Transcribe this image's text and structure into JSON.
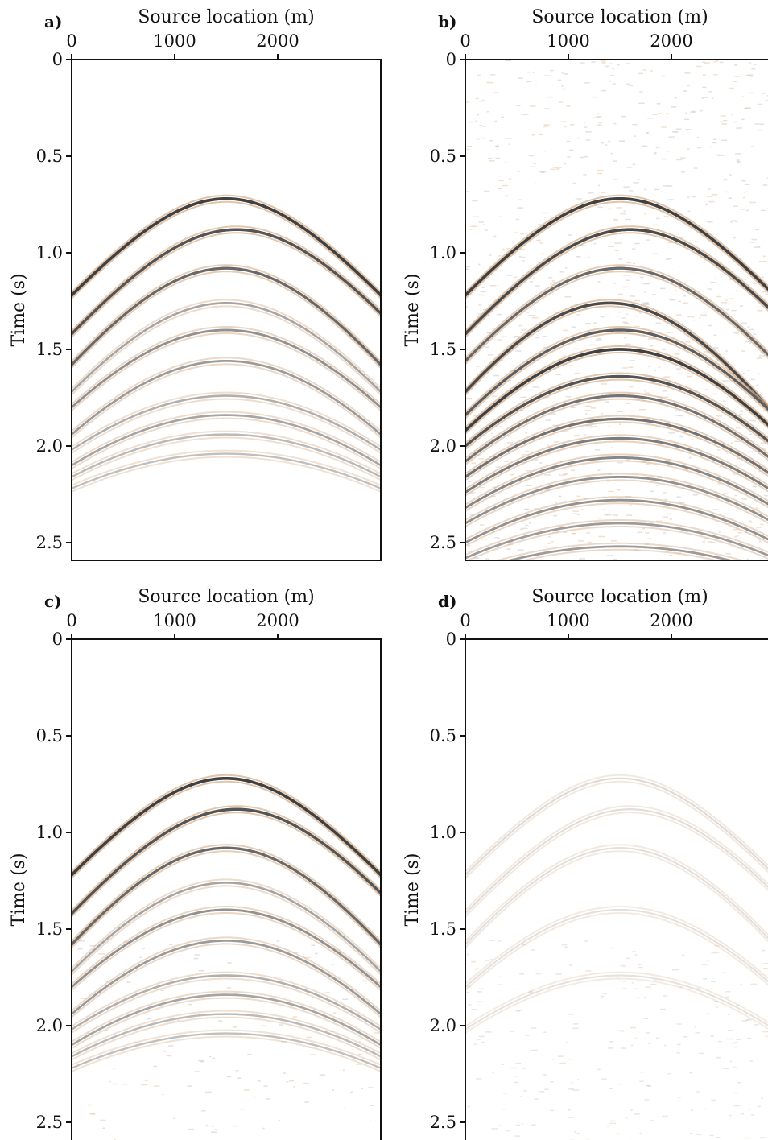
{
  "figure": {
    "background": "#ffffff",
    "trace_colors": {
      "dark": "#2f2f2f",
      "mid": "#8a8a8a",
      "light": "#c9c9c9",
      "sidelobe": "#d9b08c"
    }
  },
  "chart_data": [
    {
      "panel": "a)",
      "type": "line",
      "xlabel": "Source location (m)",
      "ylabel": "Time (s)",
      "xticks": [
        0,
        1000,
        2000
      ],
      "yticks": [
        "0",
        "0.5",
        "1.0",
        "1.5",
        "2.0",
        "2.5"
      ],
      "xlim": [
        0,
        3000
      ],
      "ylim": [
        0,
        2.6
      ],
      "y_inverted": true,
      "series": [
        {
          "apex_x": 1500,
          "apex_t": 0.72,
          "t_at_0": 1.22,
          "amp": 0.85
        },
        {
          "apex_x": 1600,
          "apex_t": 0.88,
          "t_at_0": 1.42,
          "amp": 0.75
        },
        {
          "apex_x": 1500,
          "apex_t": 1.08,
          "t_at_0": 1.58,
          "amp": 0.65
        },
        {
          "apex_x": 1500,
          "apex_t": 1.26,
          "t_at_0": 1.72,
          "amp": 0.35
        },
        {
          "apex_x": 1500,
          "apex_t": 1.4,
          "t_at_0": 1.8,
          "amp": 0.45
        },
        {
          "apex_x": 1500,
          "apex_t": 1.56,
          "t_at_0": 1.94,
          "amp": 0.4
        },
        {
          "apex_x": 1500,
          "apex_t": 1.74,
          "t_at_0": 2.02,
          "amp": 0.3
        },
        {
          "apex_x": 1500,
          "apex_t": 1.84,
          "t_at_0": 2.1,
          "amp": 0.35
        },
        {
          "apex_x": 1500,
          "apex_t": 1.94,
          "t_at_0": 2.16,
          "amp": 0.25
        },
        {
          "apex_x": 1500,
          "apex_t": 2.04,
          "t_at_0": 2.22,
          "amp": 0.22
        }
      ]
    },
    {
      "panel": "b)",
      "type": "line",
      "xlabel": "Source location (m)",
      "ylabel": "Time (s)",
      "xticks": [
        0,
        1000,
        2000
      ],
      "yticks": [
        "0",
        "0.5",
        "1.0",
        "1.5",
        "2.0",
        "2.5"
      ],
      "xlim": [
        0,
        3000
      ],
      "ylim": [
        0,
        2.6
      ],
      "y_inverted": true,
      "noise": "strong",
      "series": [
        {
          "apex_x": 1500,
          "apex_t": 0.72,
          "t_at_0": 1.22,
          "amp": 0.85
        },
        {
          "apex_x": 1600,
          "apex_t": 0.88,
          "t_at_0": 1.42,
          "amp": 0.8
        },
        {
          "apex_x": 1500,
          "apex_t": 1.08,
          "t_at_0": 1.56,
          "amp": 0.65
        },
        {
          "apex_x": 1400,
          "apex_t": 1.26,
          "t_at_0": 1.72,
          "amp": 0.8
        },
        {
          "apex_x": 1500,
          "apex_t": 1.4,
          "t_at_0": 1.84,
          "amp": 0.7
        },
        {
          "apex_x": 1500,
          "apex_t": 1.5,
          "t_at_0": 1.92,
          "amp": 0.85
        },
        {
          "apex_x": 1500,
          "apex_t": 1.64,
          "t_at_0": 2.0,
          "amp": 0.75
        },
        {
          "apex_x": 1500,
          "apex_t": 1.74,
          "t_at_0": 2.08,
          "amp": 0.6
        },
        {
          "apex_x": 1500,
          "apex_t": 1.86,
          "t_at_0": 2.16,
          "amp": 0.6
        },
        {
          "apex_x": 1500,
          "apex_t": 1.96,
          "t_at_0": 2.24,
          "amp": 0.55
        },
        {
          "apex_x": 1500,
          "apex_t": 2.06,
          "t_at_0": 2.32,
          "amp": 0.5
        },
        {
          "apex_x": 1500,
          "apex_t": 2.16,
          "t_at_0": 2.4,
          "amp": 0.45
        },
        {
          "apex_x": 1500,
          "apex_t": 2.28,
          "t_at_0": 2.5,
          "amp": 0.45
        },
        {
          "apex_x": 1500,
          "apex_t": 2.4,
          "t_at_0": 2.58,
          "amp": 0.4
        },
        {
          "apex_x": 1500,
          "apex_t": 2.52,
          "t_at_0": 2.66,
          "amp": 0.4
        }
      ]
    },
    {
      "panel": "c)",
      "type": "line",
      "xlabel": "Source location (m)",
      "ylabel": "Time (s)",
      "xticks": [
        0,
        1000,
        2000
      ],
      "yticks": [
        "0",
        "0.5",
        "1.0",
        "1.5",
        "2.0",
        "2.5"
      ],
      "xlim": [
        0,
        3000
      ],
      "ylim": [
        0,
        2.6
      ],
      "y_inverted": true,
      "noise": "weak",
      "series": [
        {
          "apex_x": 1500,
          "apex_t": 0.72,
          "t_at_0": 1.22,
          "amp": 0.85
        },
        {
          "apex_x": 1600,
          "apex_t": 0.88,
          "t_at_0": 1.42,
          "amp": 0.75
        },
        {
          "apex_x": 1500,
          "apex_t": 1.08,
          "t_at_0": 1.58,
          "amp": 0.65
        },
        {
          "apex_x": 1500,
          "apex_t": 1.26,
          "t_at_0": 1.72,
          "amp": 0.35
        },
        {
          "apex_x": 1500,
          "apex_t": 1.4,
          "t_at_0": 1.8,
          "amp": 0.45
        },
        {
          "apex_x": 1500,
          "apex_t": 1.56,
          "t_at_0": 1.94,
          "amp": 0.4
        },
        {
          "apex_x": 1500,
          "apex_t": 1.74,
          "t_at_0": 2.02,
          "amp": 0.3
        },
        {
          "apex_x": 1500,
          "apex_t": 1.84,
          "t_at_0": 2.1,
          "amp": 0.35
        },
        {
          "apex_x": 1500,
          "apex_t": 1.94,
          "t_at_0": 2.16,
          "amp": 0.25
        },
        {
          "apex_x": 1500,
          "apex_t": 2.04,
          "t_at_0": 2.22,
          "amp": 0.22
        }
      ]
    },
    {
      "panel": "d)",
      "type": "line",
      "xlabel": "Source location (m)",
      "ylabel": "Time (s)",
      "xticks": [
        0,
        1000,
        2000
      ],
      "yticks": [
        "0",
        "0.5",
        "1.0",
        "1.5",
        "2.0",
        "2.5"
      ],
      "xlim": [
        0,
        3000
      ],
      "ylim": [
        0,
        2.6
      ],
      "y_inverted": true,
      "noise": "faint",
      "series": [
        {
          "apex_x": 1500,
          "apex_t": 0.72,
          "t_at_0": 1.22,
          "amp": 0.08
        },
        {
          "apex_x": 1600,
          "apex_t": 0.88,
          "t_at_0": 1.42,
          "amp": 0.07
        },
        {
          "apex_x": 1500,
          "apex_t": 1.08,
          "t_at_0": 1.58,
          "amp": 0.06
        },
        {
          "apex_x": 1500,
          "apex_t": 1.4,
          "t_at_0": 1.8,
          "amp": 0.05
        },
        {
          "apex_x": 1500,
          "apex_t": 1.74,
          "t_at_0": 2.02,
          "amp": 0.04
        }
      ]
    }
  ]
}
